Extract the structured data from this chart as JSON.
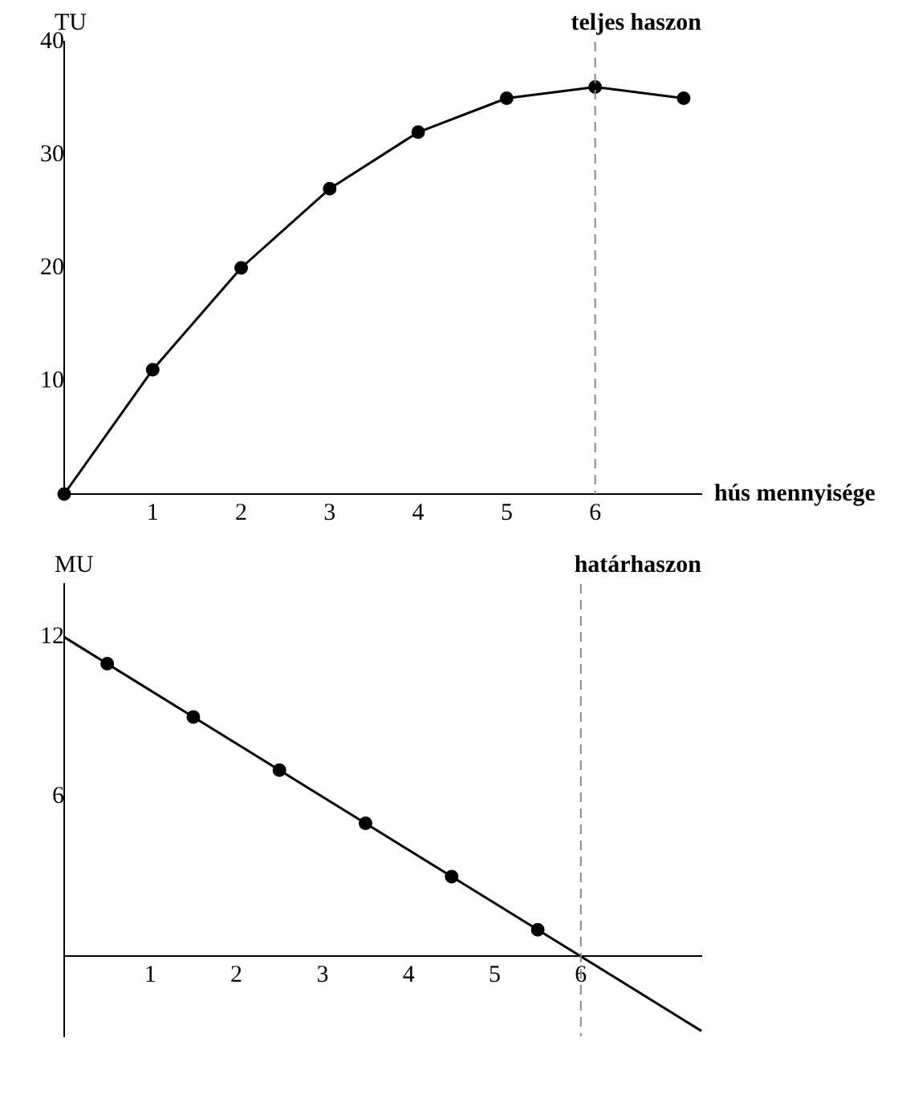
{
  "chart_data": [
    {
      "type": "line",
      "ylabel": "TU",
      "xlabel": "hús mennyisége",
      "annotations": [
        "teljes haszon"
      ],
      "x": [
        0,
        1,
        2,
        3,
        4,
        5,
        6,
        7
      ],
      "values": [
        0,
        11,
        20,
        27,
        32,
        35,
        36,
        35
      ],
      "color": "#000000",
      "xlim": [
        0,
        7.2
      ],
      "xticks": [
        1,
        2,
        3,
        4,
        5,
        6
      ],
      "ylim": [
        0,
        40
      ],
      "yticks": [
        10,
        20,
        30,
        40
      ],
      "marker": "circle",
      "grid": false,
      "legend": false,
      "ref_lines": [
        {
          "axis": "x",
          "value": 6,
          "color": "#888888",
          "line_style": "dashed"
        }
      ]
    },
    {
      "type": "line",
      "ylabel": "MU",
      "annotations": [
        "határhaszon"
      ],
      "series": [
        {
          "type": "line",
          "color": "#000000",
          "x": [
            0,
            7.4
          ],
          "values": [
            12,
            -2.8
          ],
          "marker": "none"
        },
        {
          "type": "scatter",
          "color": "#000000",
          "x": [
            0.5,
            1.5,
            2.5,
            3.5,
            4.5,
            5.5
          ],
          "values": [
            11,
            9,
            7,
            5,
            3,
            1
          ],
          "marker": "circle"
        }
      ],
      "xlim": [
        0,
        7.4
      ],
      "xticks": [
        1,
        2,
        3,
        4,
        5,
        6
      ],
      "ylim": [
        -3,
        14
      ],
      "yticks": [
        6,
        12
      ],
      "grid": false,
      "legend": false,
      "ref_lines": [
        {
          "axis": "x",
          "value": 6,
          "color": "#888888",
          "line_style": "dashed"
        }
      ]
    }
  ]
}
